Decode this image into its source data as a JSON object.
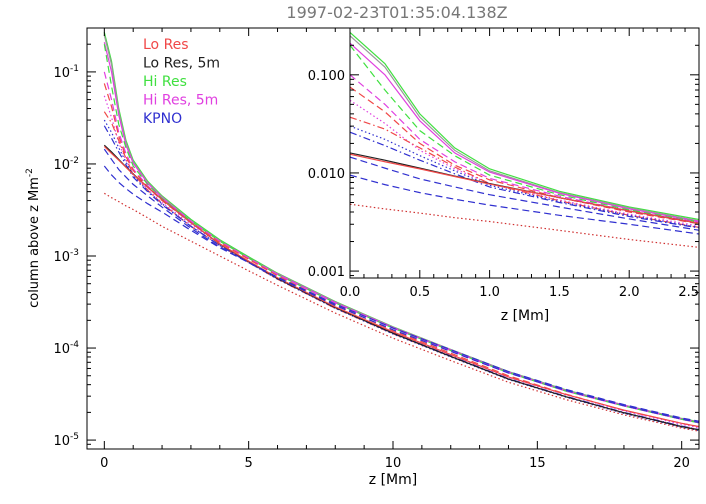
{
  "chart_data": [
    {
      "type": "line",
      "panel": "main",
      "title": "1997-02-23T01:35:04.138Z",
      "xlabel": "z [Mm]",
      "ylabel": "column above z Mm",
      "ylabel_superscript": "-2",
      "xlim": [
        -0.6,
        20.6
      ],
      "ylim": [
        8e-06,
        0.3
      ],
      "yscale": "log",
      "xticks": [
        0,
        5,
        10,
        15,
        20
      ],
      "xtick_labels": [
        "0",
        "5",
        "10",
        "15",
        "20"
      ],
      "yticks": [
        1e-05,
        0.0001,
        0.001,
        0.01,
        0.1
      ],
      "ytick_labels": [
        {
          "base": "10",
          "exp": "-5"
        },
        {
          "base": "10",
          "exp": "-4"
        },
        {
          "base": "10",
          "exp": "-3"
        },
        {
          "base": "10",
          "exp": "-2"
        },
        {
          "base": "10",
          "exp": "-1"
        }
      ],
      "legend": {
        "placement": "top-left",
        "entries": [
          {
            "label": "Lo Res",
            "color": "#f04848"
          },
          {
            "label": "Lo Res, 5m",
            "color": "#202020"
          },
          {
            "label": "Hi Res",
            "color": "#40e040"
          },
          {
            "label": "Hi Res, 5m",
            "color": "#e040e0"
          },
          {
            "label": "KPNO",
            "color": "#3030d0"
          }
        ]
      },
      "series": [
        {
          "color": "#40e040",
          "dash": "solid",
          "x": [
            0,
            0.25,
            0.5,
            0.75,
            1,
            1.5,
            2,
            3,
            4,
            5,
            6,
            8,
            10,
            12,
            14,
            16,
            18,
            20,
            20.6
          ],
          "y": [
            0.27,
            0.13,
            0.04,
            0.018,
            0.011,
            0.0065,
            0.0045,
            0.0025,
            0.0015,
            0.00098,
            0.00065,
            0.00032,
            0.00017,
            9.65e-05,
            5.55e-05,
            3.5e-05,
            2.4e-05,
            1.72e-05,
            1.58e-05
          ]
        },
        {
          "color": "#9a9a9a",
          "dash": "solid",
          "x": [
            0,
            0.25,
            0.5,
            0.75,
            1,
            1.5,
            2,
            3,
            4,
            5,
            6,
            8,
            10,
            12,
            14,
            16,
            18,
            20,
            20.6
          ],
          "y": [
            0.25,
            0.12,
            0.037,
            0.017,
            0.0105,
            0.0063,
            0.0044,
            0.0024,
            0.00145,
            0.00095,
            0.00063,
            0.00031,
            0.000165,
            9.4e-05,
            5.4e-05,
            3.4e-05,
            2.35e-05,
            1.68e-05,
            1.54e-05
          ]
        },
        {
          "color": "#e040e0",
          "dash": "solid",
          "x": [
            0,
            0.25,
            0.5,
            0.75,
            1,
            1.5,
            2,
            3,
            4,
            5,
            6,
            8,
            10,
            12,
            14,
            16,
            18,
            20,
            20.6
          ],
          "y": [
            0.21,
            0.1,
            0.034,
            0.016,
            0.0102,
            0.0062,
            0.0043,
            0.0024,
            0.00145,
            0.00095,
            0.00064,
            0.000315,
            0.000168,
            9.6e-05,
            5.5e-05,
            3.45e-05,
            2.4e-05,
            1.7e-05,
            1.56e-05
          ]
        },
        {
          "color": "#40e040",
          "dash": "dash",
          "x": [
            0,
            0.25,
            0.5,
            0.75,
            1,
            1.5,
            2,
            3,
            4,
            5,
            6,
            8,
            10,
            12,
            14,
            16,
            18,
            20,
            20.6
          ],
          "y": [
            0.2,
            0.07,
            0.027,
            0.015,
            0.0095,
            0.006,
            0.0042,
            0.0024,
            0.00145,
            0.00095,
            0.00063,
            0.00031,
            0.000165,
            9.4e-05,
            5.4e-05,
            3.4e-05,
            2.35e-05,
            1.68e-05,
            1.54e-05
          ]
        },
        {
          "color": "#e040e0",
          "dash": "dash",
          "x": [
            0,
            0.25,
            0.5,
            0.75,
            1,
            1.5,
            2,
            3,
            4,
            5,
            6,
            8,
            10,
            12,
            14,
            16,
            18,
            20,
            20.6
          ],
          "y": [
            0.1,
            0.05,
            0.022,
            0.013,
            0.0088,
            0.0058,
            0.0041,
            0.0024,
            0.00145,
            0.00095,
            0.00063,
            0.00031,
            0.000165,
            9.4e-05,
            5.4e-05,
            3.4e-05,
            2.35e-05,
            1.68e-05,
            1.54e-05
          ]
        },
        {
          "color": "#f04848",
          "dash": "dash",
          "x": [
            0,
            0.25,
            0.5,
            0.75,
            1,
            1.5,
            2,
            3,
            4,
            5,
            6,
            8,
            10,
            12,
            14,
            16,
            18,
            20,
            20.6
          ],
          "y": [
            0.075,
            0.042,
            0.02,
            0.012,
            0.0085,
            0.0056,
            0.004,
            0.0023,
            0.0014,
            0.00092,
            0.00061,
            0.000295,
            0.000155,
            8.8e-05,
            5e-05,
            3.15e-05,
            2.1e-05,
            1.52e-05,
            1.4e-05
          ]
        },
        {
          "color": "#e040e0",
          "dash": "dot",
          "x": [
            0,
            0.25,
            0.5,
            0.75,
            1,
            1.5,
            2,
            3,
            4,
            5,
            6,
            8,
            10,
            12,
            14,
            16,
            18,
            20,
            20.6
          ],
          "y": [
            0.055,
            0.032,
            0.017,
            0.011,
            0.0078,
            0.0053,
            0.0038,
            0.0022,
            0.00135,
            0.00088,
            0.00058,
            0.00028,
            0.000148,
            8.4e-05,
            4.8e-05,
            3.1e-05,
            2.08e-05,
            1.48e-05,
            1.36e-05
          ]
        },
        {
          "color": "#f04848",
          "dash": "dashdot",
          "x": [
            0,
            0.25,
            0.5,
            0.75,
            1,
            1.5,
            2,
            3,
            4,
            5,
            6,
            8,
            10,
            12,
            14,
            16,
            18,
            20,
            20.6
          ],
          "y": [
            0.037,
            0.028,
            0.018,
            0.0115,
            0.0078,
            0.0052,
            0.0037,
            0.0021,
            0.0013,
            0.00085,
            0.00056,
            0.00027,
            0.000143,
            8.1e-05,
            4.6e-05,
            2.95e-05,
            1.98e-05,
            1.41e-05,
            1.3e-05
          ]
        },
        {
          "color": "#3030d0",
          "dash": "dot",
          "x": [
            0,
            0.25,
            0.5,
            0.75,
            1,
            1.5,
            2,
            3,
            4,
            5,
            6,
            8,
            10,
            12,
            14,
            16,
            18,
            20,
            20.6
          ],
          "y": [
            0.03,
            0.022,
            0.015,
            0.0105,
            0.0075,
            0.0051,
            0.0037,
            0.0021,
            0.0013,
            0.00085,
            0.00056,
            0.00027,
            0.000142,
            8e-05,
            4.55e-05,
            2.92e-05,
            1.95e-05,
            1.38e-05,
            1.27e-05
          ]
        },
        {
          "color": "#3030d0",
          "dash": "dashdot",
          "x": [
            0,
            0.25,
            0.5,
            0.75,
            1,
            1.5,
            2,
            3,
            4,
            5,
            6,
            8,
            10,
            12,
            14,
            16,
            18,
            20,
            20.6
          ],
          "y": [
            0.026,
            0.019,
            0.0135,
            0.0098,
            0.0072,
            0.005,
            0.0036,
            0.0021,
            0.0013,
            0.00085,
            0.00057,
            0.000275,
            0.000145,
            8.2e-05,
            4.65e-05,
            2.98e-05,
            2e-05,
            1.42e-05,
            1.3e-05
          ]
        },
        {
          "color": "#202020",
          "dash": "solid",
          "x": [
            0,
            0.25,
            0.5,
            0.75,
            1,
            1.5,
            2,
            3,
            4,
            5,
            6,
            8,
            10,
            12,
            14,
            16,
            18,
            20,
            20.6
          ],
          "y": [
            0.016,
            0.0135,
            0.0112,
            0.0093,
            0.0078,
            0.0056,
            0.0041,
            0.0023,
            0.00135,
            0.00087,
            0.00057,
            0.000275,
            0.000145,
            8.1e-05,
            4.6e-05,
            2.95e-05,
            1.98e-05,
            1.4e-05,
            1.29e-05
          ]
        },
        {
          "color": "#f04848",
          "dash": "solid",
          "x": [
            0,
            0.25,
            0.5,
            0.75,
            1,
            1.5,
            2,
            3,
            4,
            5,
            6,
            8,
            10,
            12,
            14,
            16,
            18,
            20,
            20.6
          ],
          "y": [
            0.0155,
            0.013,
            0.011,
            0.0092,
            0.0077,
            0.0056,
            0.0041,
            0.0023,
            0.00136,
            0.00088,
            0.00058,
            0.00028,
            0.00015,
            8.5e-05,
            4.85e-05,
            3.12e-05,
            2.12e-05,
            1.52e-05,
            1.4e-05
          ]
        },
        {
          "color": "#3030d0",
          "dash": "dash",
          "x": [
            0,
            0.25,
            0.5,
            0.75,
            1,
            1.5,
            2,
            3,
            4,
            5,
            6,
            8,
            10,
            12,
            14,
            16,
            18,
            20,
            20.6
          ],
          "y": [
            0.0145,
            0.0112,
            0.0087,
            0.0072,
            0.006,
            0.0045,
            0.0034,
            0.002,
            0.00125,
            0.00085,
            0.00058,
            0.00029,
            0.000158,
            9.2e-05,
            5.35e-05,
            3.45e-05,
            2.36e-05,
            1.69e-05,
            1.55e-05
          ]
        },
        {
          "color": "#3030d0",
          "dash": "dash",
          "x": [
            0,
            0.25,
            0.5,
            0.75,
            1,
            1.5,
            2,
            3,
            4,
            5,
            6,
            8,
            10,
            12,
            14,
            16,
            18,
            20,
            20.6
          ],
          "y": [
            0.0095,
            0.0076,
            0.0063,
            0.0054,
            0.0047,
            0.0037,
            0.003,
            0.0019,
            0.00123,
            0.00085,
            0.00059,
            0.0003,
            0.000165,
            9.6e-05,
            5.55e-05,
            3.55e-05,
            2.43e-05,
            1.74e-05,
            1.6e-05
          ]
        },
        {
          "color": "#d03030",
          "dash": "dot",
          "x": [
            0,
            0.25,
            0.5,
            0.75,
            1,
            1.5,
            2,
            3,
            4,
            5,
            6,
            8,
            10,
            12,
            14,
            16,
            18,
            20,
            20.6
          ],
          "y": [
            0.0048,
            0.0043,
            0.0039,
            0.0035,
            0.0032,
            0.0026,
            0.0021,
            0.00145,
            0.001,
            0.00069,
            0.00048,
            0.00024,
            0.000128,
            7.3e-05,
            4.25e-05,
            2.75e-05,
            1.88e-05,
            1.35e-05,
            1.25e-05
          ]
        }
      ]
    },
    {
      "type": "line",
      "panel": "inset",
      "xlabel": "z [Mm]",
      "xlim": [
        0,
        2.5
      ],
      "ylim": [
        0.00085,
        0.3
      ],
      "yscale": "log",
      "xticks": [
        0,
        0.5,
        1,
        1.5,
        2,
        2.5
      ],
      "xtick_labels": [
        "0.0",
        "0.5",
        "1.0",
        "1.5",
        "2.0",
        "2.5"
      ],
      "yticks": [
        0.001,
        0.01,
        0.1
      ],
      "ytick_labels": [
        "0.001",
        "0.010",
        "0.100"
      ]
    }
  ]
}
